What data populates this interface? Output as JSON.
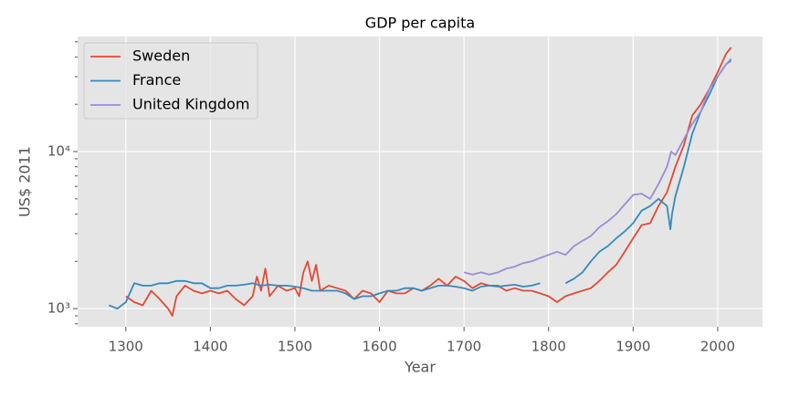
{
  "chart_data": {
    "type": "line",
    "title": "GDP per capita",
    "x_label": "Year",
    "y_label": "US$ 2011",
    "log_y": true,
    "grid": true,
    "legend": "upper left",
    "xlim": [
      1243,
      2053
    ],
    "xticks": [
      1300,
      1400,
      1500,
      1600,
      1700,
      1800,
      1900,
      2000
    ],
    "ylim": [
      766,
      54000
    ],
    "yticks": [
      {
        "value": 1000,
        "label": "10³"
      },
      {
        "value": 10000,
        "label": "10⁴"
      }
    ],
    "yminorticks": [
      800,
      900,
      2000,
      3000,
      4000,
      5000,
      6000,
      7000,
      8000,
      9000,
      20000,
      30000,
      40000,
      50000
    ],
    "series": [
      {
        "name": "Sweden",
        "color": "#E24A33",
        "x": [
          1300,
          1310,
          1320,
          1330,
          1340,
          1350,
          1355,
          1360,
          1370,
          1380,
          1390,
          1400,
          1410,
          1420,
          1430,
          1440,
          1450,
          1455,
          1460,
          1465,
          1470,
          1480,
          1490,
          1500,
          1505,
          1510,
          1515,
          1520,
          1525,
          1530,
          1540,
          1550,
          1560,
          1570,
          1580,
          1590,
          1600,
          1610,
          1620,
          1630,
          1640,
          1650,
          1660,
          1670,
          1680,
          1690,
          1700,
          1710,
          1720,
          1730,
          1740,
          1750,
          1760,
          1770,
          1780,
          1790,
          1800,
          1810,
          1820,
          1830,
          1840,
          1850,
          1860,
          1870,
          1880,
          1890,
          1900,
          1910,
          1920,
          1930,
          1940,
          1950,
          1960,
          1970,
          1980,
          1990,
          2000,
          2010,
          2016
        ],
        "values": [
          1200,
          1100,
          1050,
          1300,
          1150,
          1000,
          900,
          1200,
          1400,
          1300,
          1250,
          1300,
          1250,
          1300,
          1150,
          1050,
          1200,
          1600,
          1300,
          1800,
          1200,
          1400,
          1300,
          1350,
          1200,
          1700,
          2000,
          1500,
          1900,
          1300,
          1400,
          1350,
          1300,
          1150,
          1300,
          1250,
          1100,
          1300,
          1250,
          1250,
          1350,
          1300,
          1400,
          1550,
          1400,
          1600,
          1500,
          1350,
          1450,
          1400,
          1400,
          1300,
          1350,
          1300,
          1300,
          1250,
          1200,
          1100,
          1200,
          1250,
          1300,
          1350,
          1500,
          1700,
          1900,
          2300,
          2800,
          3400,
          3500,
          4500,
          5500,
          8000,
          11000,
          17000,
          20000,
          25000,
          32000,
          42000,
          46000
        ]
      },
      {
        "name": "France",
        "color": "#348ABD",
        "x": [
          1280,
          1290,
          1300,
          1310,
          1320,
          1330,
          1340,
          1350,
          1360,
          1370,
          1380,
          1390,
          1400,
          1410,
          1420,
          1430,
          1440,
          1450,
          1460,
          1470,
          1480,
          1490,
          1500,
          1510,
          1520,
          1530,
          1540,
          1550,
          1560,
          1570,
          1580,
          1590,
          1600,
          1610,
          1620,
          1630,
          1640,
          1650,
          1660,
          1670,
          1680,
          1690,
          1700,
          1710,
          1720,
          1730,
          1740,
          1750,
          1760,
          1770,
          1780,
          1790,
          1800,
          1820,
          1830,
          1840,
          1850,
          1860,
          1870,
          1880,
          1890,
          1900,
          1910,
          1920,
          1930,
          1940,
          1944,
          1946,
          1950,
          1960,
          1970,
          1980,
          1990,
          2000,
          2010,
          2016
        ],
        "values": [
          1050,
          1000,
          1100,
          1450,
          1400,
          1400,
          1450,
          1450,
          1500,
          1500,
          1450,
          1450,
          1350,
          1350,
          1400,
          1400,
          1420,
          1450,
          1400,
          1420,
          1400,
          1400,
          1380,
          1350,
          1300,
          1300,
          1300,
          1300,
          1250,
          1150,
          1200,
          1200,
          1250,
          1300,
          1300,
          1350,
          1350,
          1300,
          1350,
          1400,
          1400,
          1380,
          1350,
          1300,
          1380,
          1400,
          1380,
          1400,
          1420,
          1380,
          1400,
          1450,
          null,
          1450,
          1550,
          1700,
          2000,
          2300,
          2500,
          2800,
          3100,
          3500,
          4200,
          4500,
          5000,
          4500,
          3200,
          4000,
          5200,
          8000,
          13000,
          18000,
          23000,
          30000,
          36000,
          38000
        ]
      },
      {
        "name": "United Kingdom",
        "color": "#988ED5",
        "x": [
          1700,
          1710,
          1720,
          1730,
          1740,
          1750,
          1760,
          1770,
          1780,
          1790,
          1800,
          1810,
          1820,
          1830,
          1840,
          1850,
          1860,
          1870,
          1880,
          1890,
          1900,
          1910,
          1920,
          1930,
          1940,
          1945,
          1950,
          1960,
          1970,
          1980,
          1990,
          2000,
          2010,
          2016
        ],
        "values": [
          1700,
          1650,
          1700,
          1650,
          1700,
          1800,
          1850,
          1950,
          2000,
          2100,
          2200,
          2300,
          2200,
          2500,
          2700,
          2900,
          3300,
          3600,
          4000,
          4600,
          5300,
          5400,
          5000,
          6200,
          8000,
          10000,
          9500,
          12000,
          15000,
          18000,
          25000,
          30000,
          36000,
          39000
        ]
      }
    ]
  }
}
